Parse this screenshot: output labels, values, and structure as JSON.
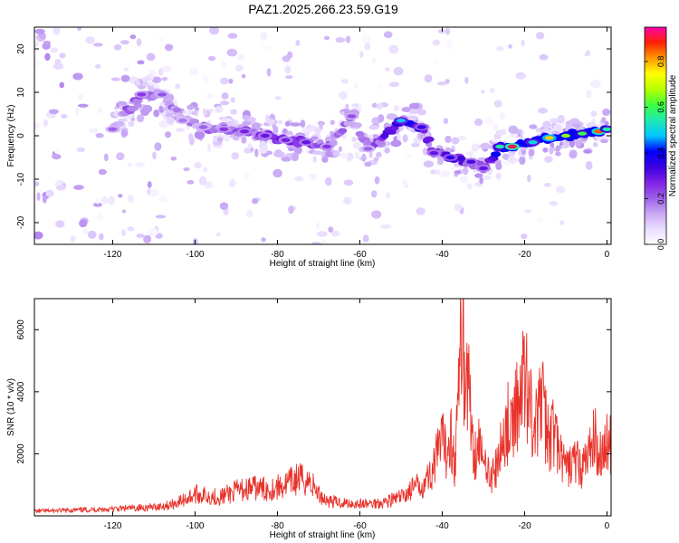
{
  "title": "PAZ1.2025.266.23.59.G19",
  "colors": {
    "snr_line": "#e8322a",
    "colormap": [
      "#ffffff",
      "#e9dcff",
      "#c8a8f4",
      "#9b5fe8",
      "#7f22e6",
      "#3a00e0",
      "#0000ff",
      "#00c8ff",
      "#20e8b0",
      "#40ff40",
      "#b8ff00",
      "#ffff00",
      "#ff9900",
      "#ff2200",
      "#ff00aa"
    ]
  },
  "chart_data": [
    {
      "type": "heatmap",
      "title": "PAZ1.2025.266.23.59.G19",
      "xlabel": "Height of straight line (km)",
      "ylabel": "Frequency (Hz)",
      "xlim": [
        -139,
        1
      ],
      "ylim": [
        -25,
        25
      ],
      "xticks": [
        -120,
        -100,
        -80,
        -60,
        -40,
        -20,
        0
      ],
      "yticks": [
        -20,
        -10,
        0,
        10,
        20
      ],
      "colorbar": {
        "label": "Normalized spectral amplitude",
        "range": [
          0,
          0.95
        ],
        "ticks": [
          0.0,
          0.2,
          0.4,
          0.6,
          0.8
        ]
      },
      "ridge": [
        {
          "x": -120,
          "y": 1.5,
          "amp": 0.2
        },
        {
          "x": -113,
          "y": 9.5,
          "amp": 0.25
        },
        {
          "x": -108,
          "y": 9.5,
          "amp": 0.22
        },
        {
          "x": -103,
          "y": 3.5,
          "amp": 0.18
        },
        {
          "x": -98,
          "y": 2.0,
          "amp": 0.2
        },
        {
          "x": -93,
          "y": 1.5,
          "amp": 0.25
        },
        {
          "x": -88,
          "y": 1.0,
          "amp": 0.28
        },
        {
          "x": -83,
          "y": 0.0,
          "amp": 0.3
        },
        {
          "x": -78,
          "y": -1.0,
          "amp": 0.28
        },
        {
          "x": -73,
          "y": -1.5,
          "amp": 0.3
        },
        {
          "x": -68,
          "y": -2.5,
          "amp": 0.25
        },
        {
          "x": -62,
          "y": 4.5,
          "amp": 0.22
        },
        {
          "x": -58,
          "y": -3.0,
          "amp": 0.2
        },
        {
          "x": -50,
          "y": 3.5,
          "amp": 0.48
        },
        {
          "x": -45,
          "y": 2.0,
          "amp": 0.35
        },
        {
          "x": -42,
          "y": -4.0,
          "amp": 0.3
        },
        {
          "x": -38,
          "y": -5.0,
          "amp": 0.35
        },
        {
          "x": -33,
          "y": -6.0,
          "amp": 0.32
        },
        {
          "x": -30,
          "y": -7.5,
          "amp": 0.3
        },
        {
          "x": -26,
          "y": -2.5,
          "amp": 0.55
        },
        {
          "x": -23,
          "y": -2.5,
          "amp": 0.92
        },
        {
          "x": -18,
          "y": -1.5,
          "amp": 0.5
        },
        {
          "x": -14,
          "y": -0.5,
          "amp": 0.78
        },
        {
          "x": -10,
          "y": 0.0,
          "amp": 0.65
        },
        {
          "x": -6,
          "y": 0.5,
          "amp": 0.6
        },
        {
          "x": -2,
          "y": 1.0,
          "amp": 0.85
        },
        {
          "x": 0,
          "y": 1.5,
          "amp": 0.55
        }
      ]
    },
    {
      "type": "line",
      "xlabel": "Height of straight line (km)",
      "ylabel": "SNR (10 * v/v)",
      "xlim": [
        -139,
        1
      ],
      "ylim": [
        0,
        7000
      ],
      "xticks": [
        -120,
        -100,
        -80,
        -60,
        -40,
        -20,
        0
      ],
      "yticks": [
        2000,
        4000,
        6000
      ],
      "series": [
        {
          "x": [
            -139,
            -130,
            -120,
            -110,
            -106,
            -103,
            -100,
            -97,
            -94,
            -90,
            -86,
            -82,
            -78,
            -75,
            -72,
            -70,
            -68,
            -66,
            -62,
            -58,
            -54,
            -50,
            -47,
            -45,
            -43,
            -41,
            -40,
            -39,
            -38,
            -37,
            -36,
            -35,
            -34.5,
            -34,
            -33,
            -32,
            -31,
            -30,
            -29,
            -28,
            -27,
            -26,
            -25,
            -24,
            -23,
            -22,
            -21,
            -20,
            -19,
            -18,
            -17,
            -16,
            -15,
            -14,
            -13,
            -12,
            -11,
            -10,
            -9,
            -8,
            -7,
            -6,
            -5,
            -4,
            -3,
            -2,
            -1,
            0,
            1
          ],
          "y": [
            150,
            180,
            220,
            280,
            350,
            500,
            700,
            650,
            600,
            800,
            900,
            850,
            1000,
            1200,
            1100,
            700,
            500,
            450,
            400,
            380,
            450,
            600,
            900,
            1000,
            1300,
            2000,
            2400,
            2000,
            2800,
            1600,
            4000,
            7000,
            3500,
            5000,
            3000,
            2000,
            2500,
            1500,
            1800,
            1200,
            1500,
            2000,
            2600,
            3000,
            2500,
            3800,
            3500,
            5000,
            3800,
            3200,
            2800,
            4000,
            3000,
            2500,
            2800,
            2200,
            1800,
            1500,
            1600,
            1800,
            1700,
            1500,
            1800,
            2200,
            2500,
            2000,
            2200,
            2300,
            2350
          ]
        }
      ]
    }
  ]
}
